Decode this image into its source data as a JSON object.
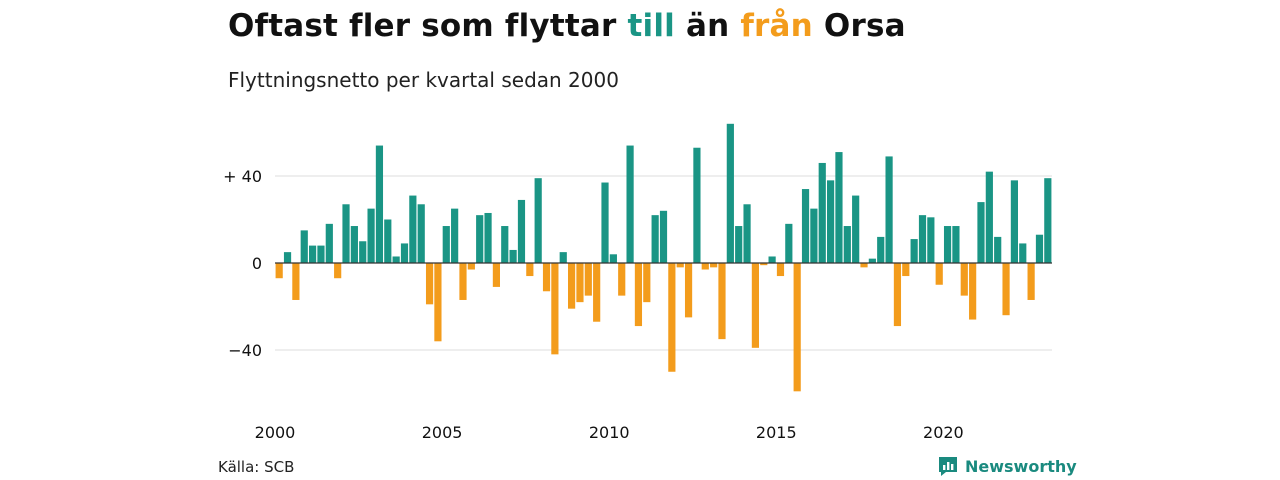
{
  "header": {
    "title_parts": [
      "Oftast fler som flyttar ",
      "till",
      " än ",
      "från",
      " Orsa"
    ],
    "subtitle": "Flyttningsnetto per kvartal sedan 2000"
  },
  "footer": {
    "source": "Källa: SCB",
    "brand": "Newsworthy",
    "brand_icon": "newsworthy-logo-icon"
  },
  "colors": {
    "positive": "#1a9585",
    "negative": "#f39c1c",
    "grid": "#dddddd",
    "zero_line": "#333333"
  },
  "chart_data": {
    "type": "bar",
    "title": "Oftast fler som flyttar till än från Orsa",
    "subtitle": "Flyttningsnetto per kvartal sedan 2000",
    "xlabel": "",
    "ylabel": "",
    "start": "2000 Q1",
    "frequency": "quarterly",
    "ylim": [
      -65,
      65
    ],
    "y_ticks": [
      {
        "value": 40,
        "label": "+ 40"
      },
      {
        "value": 0,
        "label": "0"
      },
      {
        "value": -40,
        "label": "−40"
      }
    ],
    "x_ticks": [
      {
        "label": "2000",
        "quarter_index": 0
      },
      {
        "label": "2005",
        "quarter_index": 20
      },
      {
        "label": "2010",
        "quarter_index": 40
      },
      {
        "label": "2015",
        "quarter_index": 60
      },
      {
        "label": "2020",
        "quarter_index": 80
      }
    ],
    "grid": true,
    "values": [
      -7,
      5,
      -17,
      15,
      8,
      8,
      18,
      -7,
      27,
      17,
      10,
      25,
      54,
      20,
      3,
      9,
      31,
      27,
      -19,
      -36,
      17,
      25,
      -17,
      -3,
      22,
      23,
      -11,
      17,
      6,
      29,
      -6,
      39,
      -13,
      -42,
      5,
      -21,
      -18,
      -15,
      -27,
      37,
      4,
      -15,
      54,
      -29,
      -18,
      22,
      24,
      -50,
      -2,
      -25,
      53,
      -3,
      -2,
      -35,
      64,
      17,
      27,
      -39,
      -1,
      3,
      -6,
      18,
      -59,
      34,
      25,
      46,
      38,
      51,
      17,
      31,
      -2,
      2,
      12,
      49,
      -29,
      -6,
      11,
      22,
      21,
      -10,
      17,
      17,
      -15,
      -26,
      28,
      42,
      12,
      -24,
      38,
      9,
      -17,
      13,
      39
    ]
  }
}
